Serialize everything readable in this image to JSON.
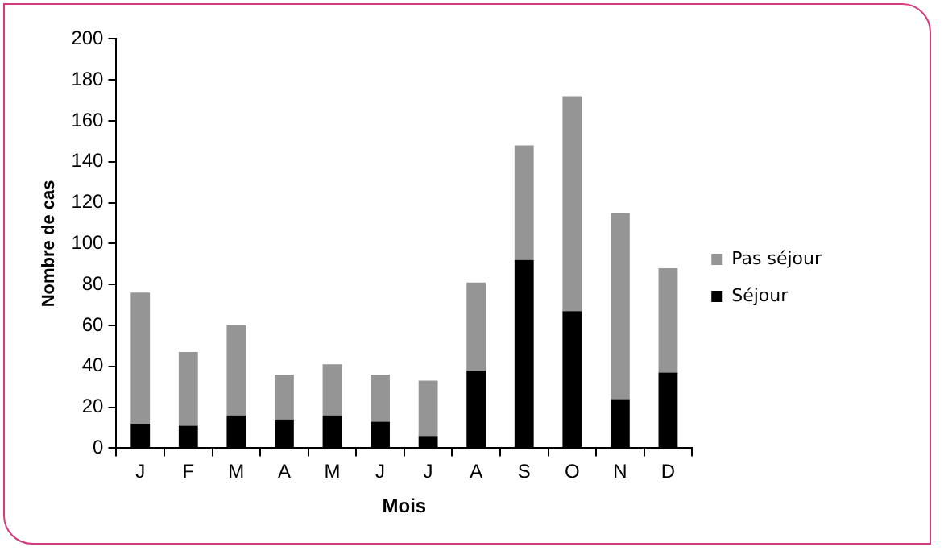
{
  "chart_data": {
    "type": "bar",
    "stacked": true,
    "xlabel": "Mois",
    "ylabel": "Nombre de cas",
    "categories": [
      "J",
      "F",
      "M",
      "A",
      "M",
      "J",
      "J",
      "A",
      "S",
      "O",
      "N",
      "D"
    ],
    "series": [
      {
        "name": "Séjour",
        "color": "#000000",
        "values": [
          12,
          11,
          16,
          14,
          16,
          13,
          6,
          38,
          92,
          67,
          24,
          37
        ]
      },
      {
        "name": "Pas séjour",
        "color": "#959595",
        "values": [
          64,
          36,
          44,
          22,
          25,
          23,
          27,
          43,
          56,
          105,
          91,
          51
        ]
      }
    ],
    "ylim": [
      0,
      200
    ],
    "yticks": [
      0,
      20,
      40,
      60,
      80,
      100,
      120,
      140,
      160,
      180,
      200
    ],
    "grid": false,
    "legend": "right"
  }
}
